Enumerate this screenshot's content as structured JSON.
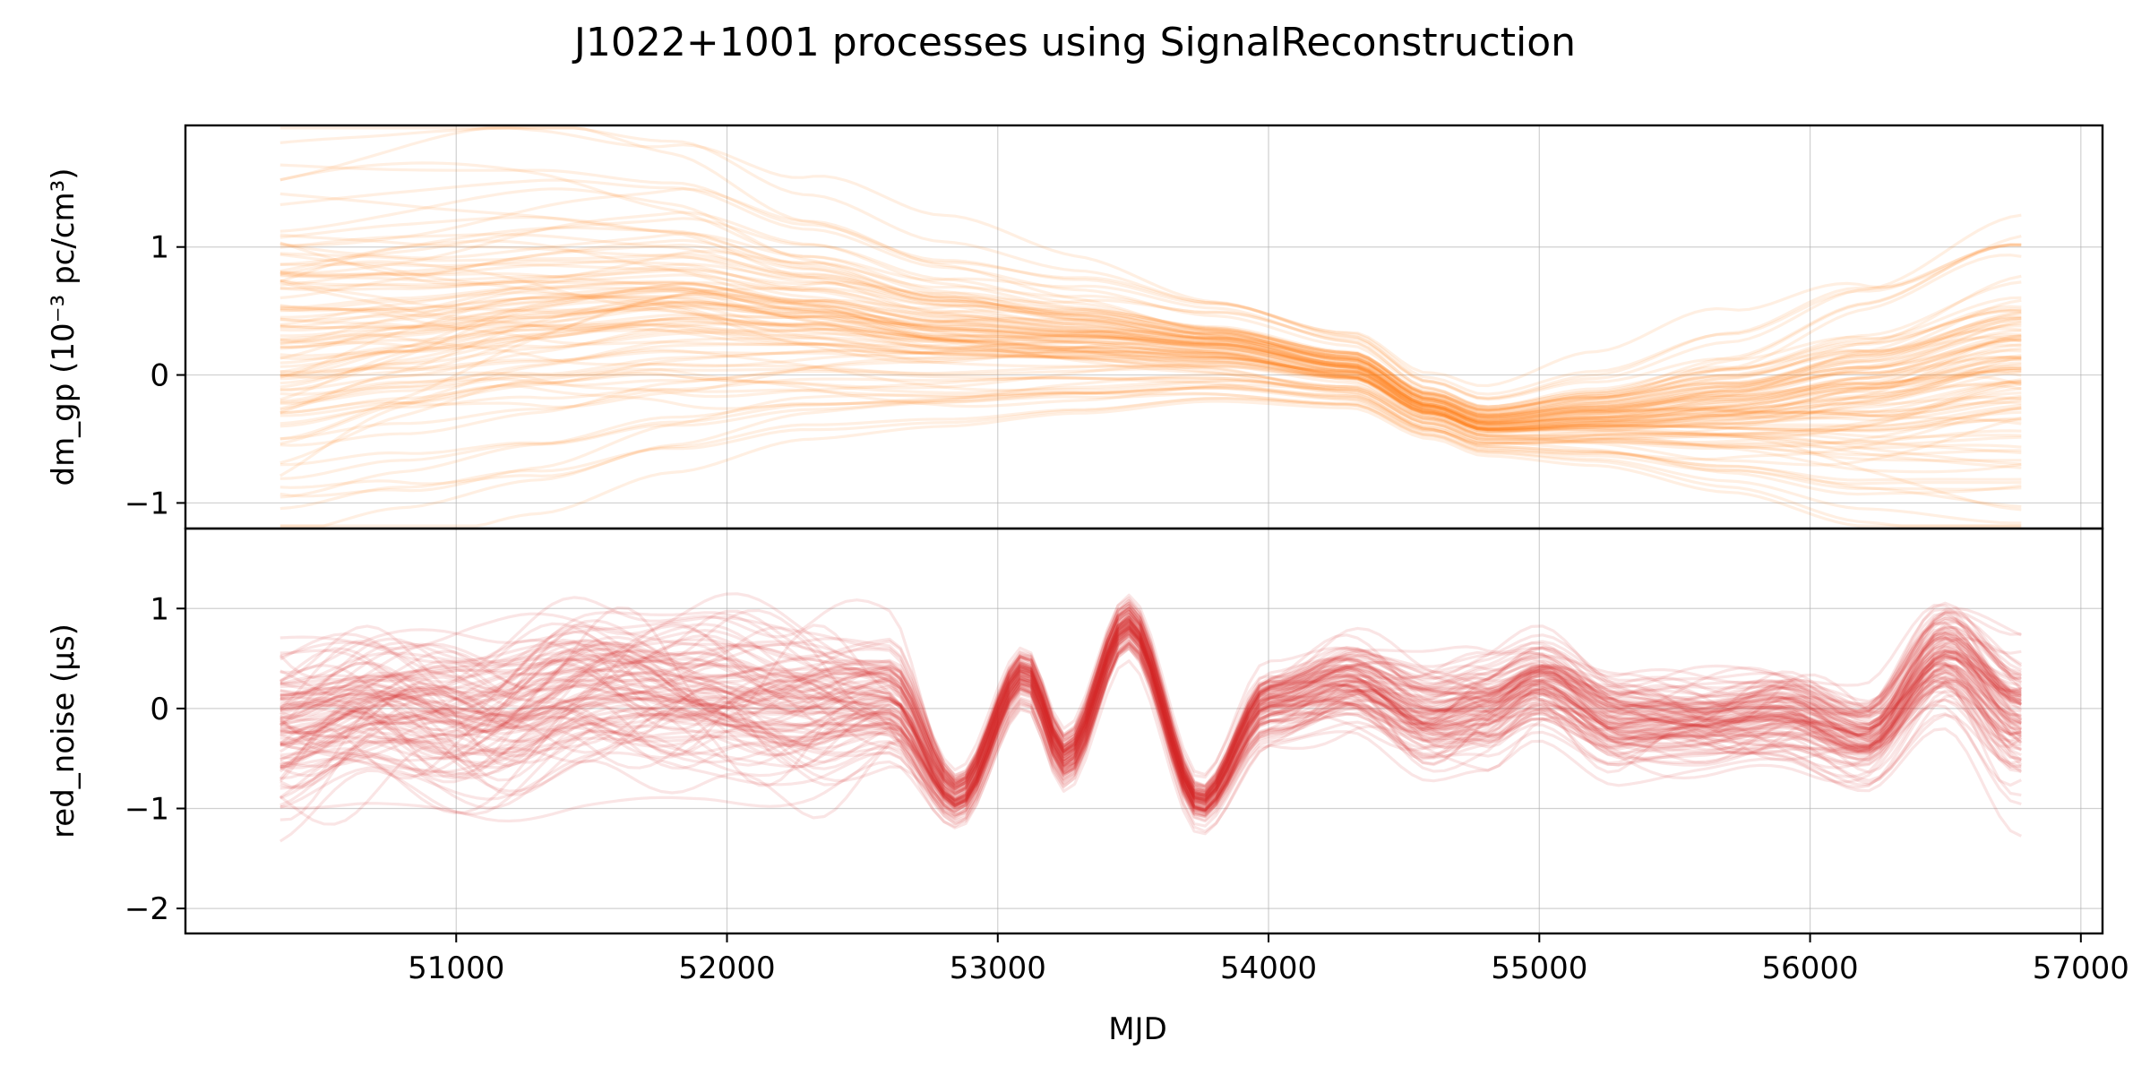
{
  "chart_data": {
    "type": "line",
    "title": "J1022+1001 processes using SignalReconstruction",
    "xlabel": "MJD",
    "xlim": [
      50000,
      57080
    ],
    "xticks": [
      51000,
      52000,
      53000,
      54000,
      55000,
      56000,
      57000
    ],
    "grid": true,
    "panels": [
      {
        "id": "dm_gp",
        "ylabel": "dm_gp (10⁻³ pc/cm³)",
        "ylim": [
          -1.2,
          1.95
        ],
        "yticks": [
          -1,
          0,
          1
        ],
        "color": "#ff7f0e",
        "realizations": 100,
        "x_range": [
          50350,
          56780
        ],
        "mean_x": [
          50350,
          50800,
          51300,
          51800,
          52300,
          52800,
          53300,
          53800,
          54300,
          54600,
          54800,
          55200,
          55700,
          56200,
          56780
        ],
        "mean_y": [
          0.35,
          0.42,
          0.5,
          0.55,
          0.45,
          0.32,
          0.27,
          0.2,
          0.05,
          -0.25,
          -0.38,
          -0.32,
          -0.25,
          -0.15,
          0.05
        ],
        "spread_y": [
          0.8,
          0.75,
          0.7,
          0.6,
          0.45,
          0.35,
          0.28,
          0.2,
          0.15,
          0.12,
          0.12,
          0.18,
          0.3,
          0.45,
          0.6
        ]
      },
      {
        "id": "red_noise",
        "ylabel": "red_noise (μs)",
        "ylim": [
          -2.25,
          1.8
        ],
        "yticks": [
          -2,
          -1,
          0,
          1
        ],
        "color": "#d62728",
        "realizations": 100,
        "x_range": [
          50350,
          56780
        ],
        "mean_x": [
          50350,
          50700,
          51100,
          51500,
          51900,
          52300,
          52600,
          52850,
          53100,
          53250,
          53480,
          53750,
          54000,
          54300,
          54600,
          54800,
          55000,
          55300,
          55600,
          55900,
          56200,
          56500,
          56780
        ],
        "mean_y": [
          -0.2,
          0.0,
          -0.1,
          0.2,
          0.1,
          0.0,
          0.05,
          -0.9,
          0.35,
          -0.5,
          0.85,
          -0.95,
          0.05,
          0.25,
          -0.1,
          0.0,
          0.25,
          -0.15,
          -0.15,
          -0.05,
          -0.3,
          0.55,
          -0.1
        ],
        "spread_y": [
          0.45,
          0.45,
          0.45,
          0.45,
          0.45,
          0.45,
          0.35,
          0.15,
          0.15,
          0.15,
          0.15,
          0.12,
          0.2,
          0.25,
          0.3,
          0.3,
          0.25,
          0.25,
          0.25,
          0.25,
          0.25,
          0.3,
          0.4
        ]
      }
    ]
  }
}
